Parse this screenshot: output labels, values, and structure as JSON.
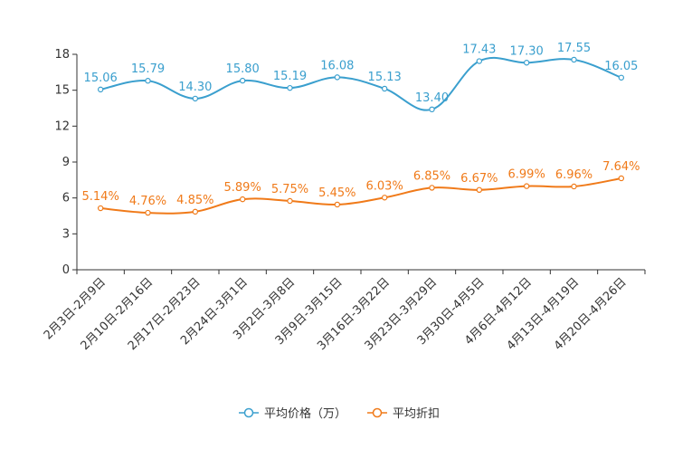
{
  "chart_data": {
    "type": "line",
    "title": "",
    "xlabel": "",
    "ylabel": "",
    "ylim": [
      0,
      18
    ],
    "yticks": [
      0,
      3,
      6,
      9,
      12,
      15,
      18
    ],
    "grid": false,
    "legend_position": "bottom",
    "categories": [
      "2月3日-2月9日",
      "2月10日-2月16日",
      "2月17日-2月23日",
      "2月24日-3月1日",
      "3月2日-3月8日",
      "3月9日-3月15日",
      "3月16日-3月22日",
      "3月23日-3月29日",
      "3月30日-4月5日",
      "4月6日-4月12日",
      "4月13日-4月19日",
      "4月20日-4月26日"
    ],
    "series": [
      {
        "name": "平均价格（万）",
        "color": "#3a9fce",
        "values": [
          15.06,
          15.79,
          14.3,
          15.8,
          15.19,
          16.08,
          15.13,
          13.4,
          17.43,
          17.3,
          17.55,
          16.05
        ],
        "labels": [
          "15.06",
          "15.79",
          "14.30",
          "15.80",
          "15.19",
          "16.08",
          "15.13",
          "13.40",
          "17.43",
          "17.30",
          "17.55",
          "16.05"
        ]
      },
      {
        "name": "平均折扣",
        "color": "#f07a19",
        "values": [
          5.14,
          4.76,
          4.85,
          5.89,
          5.75,
          5.45,
          6.03,
          6.85,
          6.67,
          6.99,
          6.96,
          7.64
        ],
        "labels": [
          "5.14%",
          "4.76%",
          "4.85%",
          "5.89%",
          "5.75%",
          "5.45%",
          "6.03%",
          "6.85%",
          "6.67%",
          "6.99%",
          "6.96%",
          "7.64%"
        ]
      }
    ]
  }
}
